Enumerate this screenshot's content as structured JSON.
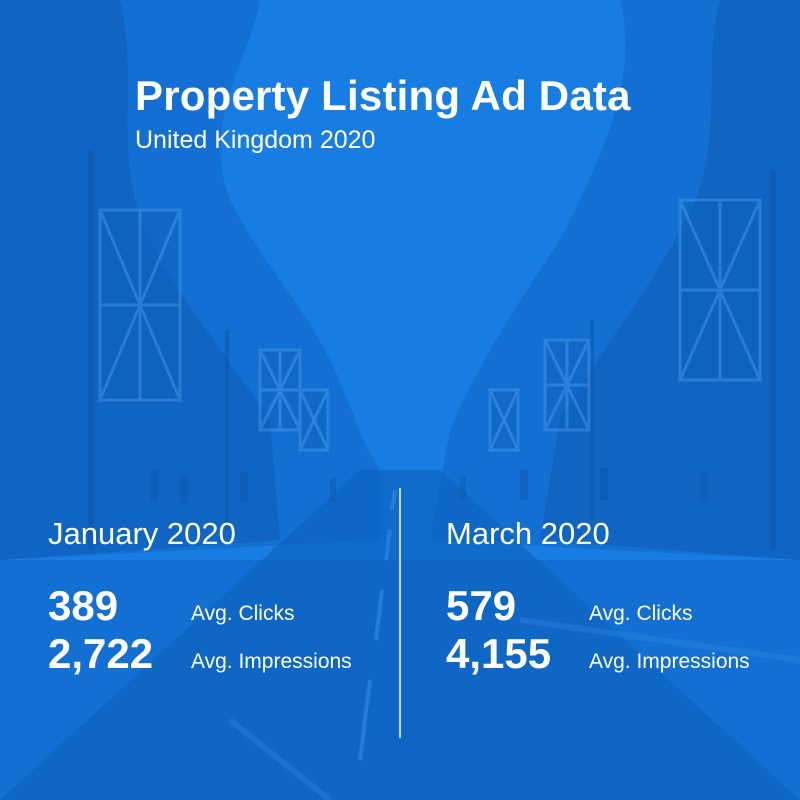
{
  "header": {
    "title": "Property Listing Ad Data",
    "subtitle": "United Kingdom 2020"
  },
  "panels": [
    {
      "month": "January 2020",
      "stats": [
        {
          "value": "389",
          "label": "Avg. Clicks"
        },
        {
          "value": "2,722",
          "label": "Avg. Impressions"
        }
      ]
    },
    {
      "month": "March 2020",
      "stats": [
        {
          "value": "579",
          "label": "Avg. Clicks"
        },
        {
          "value": "4,155",
          "label": "Avg. Impressions"
        }
      ]
    }
  ],
  "colors": {
    "overlay_blue": "#1476de",
    "text": "#ffffff"
  }
}
